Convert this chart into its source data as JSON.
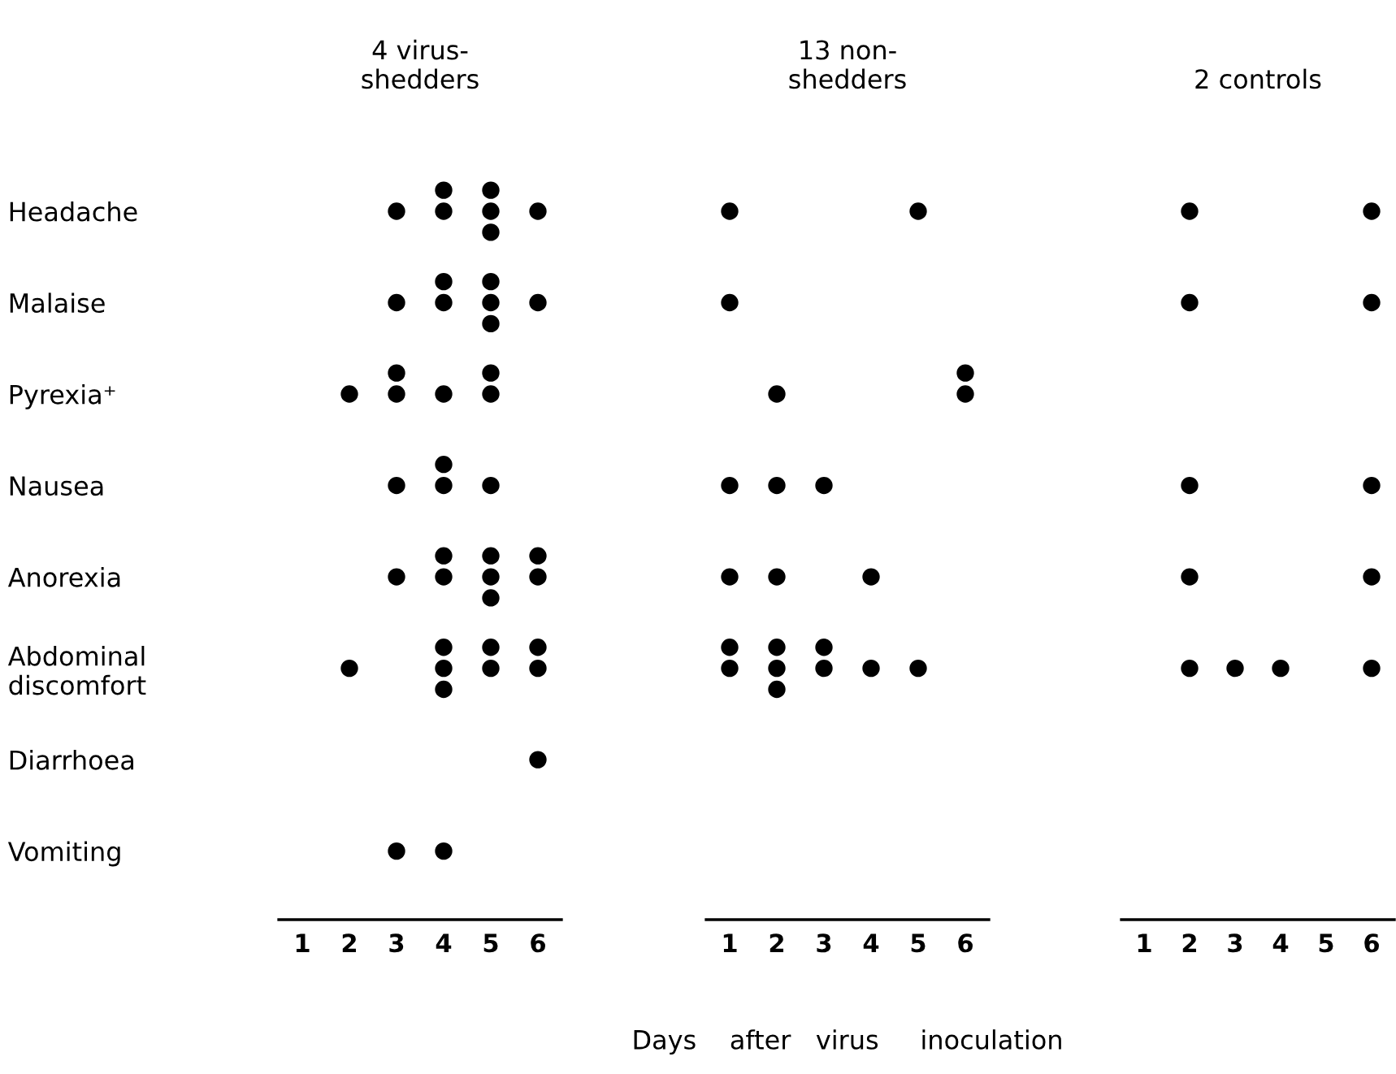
{
  "chart_data": [
    {
      "type": "scatter",
      "orientation": "horizontal",
      "title": "4 virus-\nshedders",
      "marker": "circle",
      "categories": [
        "Headache",
        "Malaise",
        "Pyrexia⁺",
        "Nausea",
        "Anorexia",
        "Abdominal\ndiscomfort",
        "Diarrhoea",
        "Vomiting"
      ],
      "xlim": [
        0.5,
        6.5
      ],
      "xticks": [
        1,
        2,
        3,
        4,
        5,
        6
      ],
      "series": [
        {
          "color": "#000000",
          "x": [
            "Headache",
            "Headache",
            "Headache",
            "Headache",
            "Headache",
            "Headache",
            "Headache",
            "Malaise",
            "Malaise",
            "Malaise",
            "Malaise",
            "Malaise",
            "Malaise",
            "Malaise",
            "Pyrexia⁺",
            "Pyrexia⁺",
            "Pyrexia⁺",
            "Pyrexia⁺",
            "Pyrexia⁺",
            "Pyrexia⁺",
            "Nausea",
            "Nausea",
            "Nausea",
            "Nausea",
            "Anorexia",
            "Anorexia",
            "Anorexia",
            "Anorexia",
            "Anorexia",
            "Anorexia",
            "Anorexia",
            "Anorexia",
            "Abdominal\ndiscomfort",
            "Abdominal\ndiscomfort",
            "Abdominal\ndiscomfort",
            "Abdominal\ndiscomfort",
            "Abdominal\ndiscomfort",
            "Abdominal\ndiscomfort",
            "Abdominal\ndiscomfort",
            "Abdominal\ndiscomfort",
            "Diarrhoea",
            "Vomiting",
            "Vomiting"
          ],
          "values": [
            3,
            4,
            4,
            5,
            5,
            5,
            6,
            3,
            4,
            4,
            5,
            5,
            5,
            6,
            2,
            3,
            3,
            4,
            5,
            5,
            3,
            4,
            4,
            5,
            3,
            4,
            4,
            5,
            5,
            5,
            6,
            6,
            2,
            4,
            4,
            4,
            5,
            5,
            6,
            6,
            6,
            3,
            4
          ]
        }
      ]
    },
    {
      "type": "scatter",
      "orientation": "horizontal",
      "title": "13 non-\nshedders",
      "xlabel": "Days    after   virus     inoculation",
      "tick_labels": "x",
      "marker": "circle",
      "categories": [
        "Headache",
        "Malaise",
        "Pyrexia⁺",
        "Nausea",
        "Anorexia",
        "Abdominal\ndiscomfort",
        "Diarrhoea",
        "Vomiting"
      ],
      "xlim": [
        0.5,
        6.5
      ],
      "xticks": [
        1,
        2,
        3,
        4,
        5,
        6
      ],
      "series": [
        {
          "color": "#000000",
          "x": [
            "Headache",
            "Headache",
            "Malaise",
            "Pyrexia⁺",
            "Pyrexia⁺",
            "Pyrexia⁺",
            "Nausea",
            "Nausea",
            "Nausea",
            "Anorexia",
            "Anorexia",
            "Anorexia",
            "Abdominal\ndiscomfort",
            "Abdominal\ndiscomfort",
            "Abdominal\ndiscomfort",
            "Abdominal\ndiscomfort",
            "Abdominal\ndiscomfort",
            "Abdominal\ndiscomfort",
            "Abdominal\ndiscomfort",
            "Abdominal\ndiscomfort",
            "Abdominal\ndiscomfort"
          ],
          "values": [
            1,
            5,
            1,
            2,
            6,
            6,
            1,
            2,
            3,
            1,
            2,
            4,
            1,
            1,
            2,
            2,
            2,
            3,
            3,
            4,
            5
          ]
        }
      ]
    },
    {
      "type": "scatter",
      "orientation": "horizontal",
      "title": "2 controls",
      "tick_labels": "x",
      "marker": "circle",
      "categories": [
        "Headache",
        "Malaise",
        "Pyrexia⁺",
        "Nausea",
        "Anorexia",
        "Abdominal\ndiscomfort",
        "Diarrhoea",
        "Vomiting"
      ],
      "xlim": [
        0.5,
        6.5
      ],
      "xticks": [
        1,
        2,
        3,
        4,
        5,
        6
      ],
      "series": [
        {
          "color": "#000000",
          "x": [
            "Headache",
            "Headache",
            "Malaise",
            "Malaise",
            "Nausea",
            "Nausea",
            "Anorexia",
            "Anorexia",
            "Abdominal\ndiscomfort",
            "Abdominal\ndiscomfort",
            "Abdominal\ndiscomfort",
            "Abdominal\ndiscomfort"
          ],
          "values": [
            2,
            6,
            2,
            6,
            2,
            6,
            2,
            6,
            2,
            3,
            4,
            6
          ]
        }
      ]
    }
  ]
}
